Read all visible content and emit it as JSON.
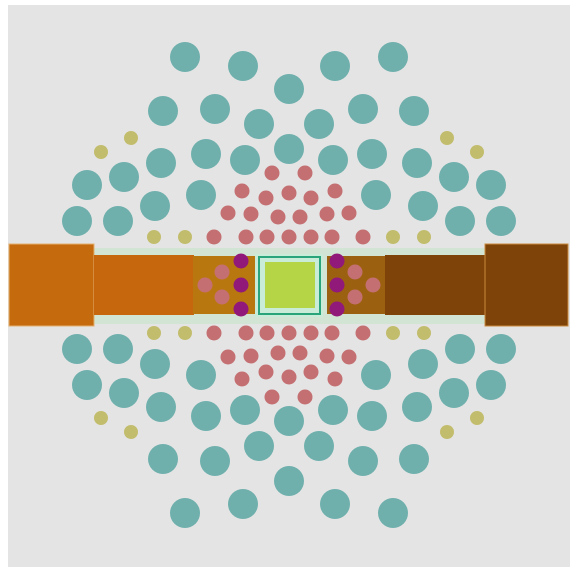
{
  "colors": {
    "page_background": "#ffffff",
    "panel_background": "#e4e4e4",
    "large_hole": "#6fb0ad",
    "small_hole": "#c46f71",
    "pin_hole": "#c2bd6d",
    "via": "#91197a",
    "left_outer_bar": "#c66a0e",
    "left_mid_bar": "#c6670e",
    "right_mid_bar": "#7e4308",
    "right_outer_bar": "#7e4308",
    "inner_block": "#b9780f",
    "inner_block_right": "#9b6110",
    "center_frame": "#c9ecd8",
    "center_ring": "#2aa47a",
    "center_core": "#b5d546",
    "channel": "#d2e4d4"
  },
  "elements": {
    "large_holes": "cylinder-holes-large",
    "small_holes": "cylinder-holes-small",
    "pin_holes": "pin-holes",
    "vias": "via-holes",
    "center": "center-component"
  }
}
